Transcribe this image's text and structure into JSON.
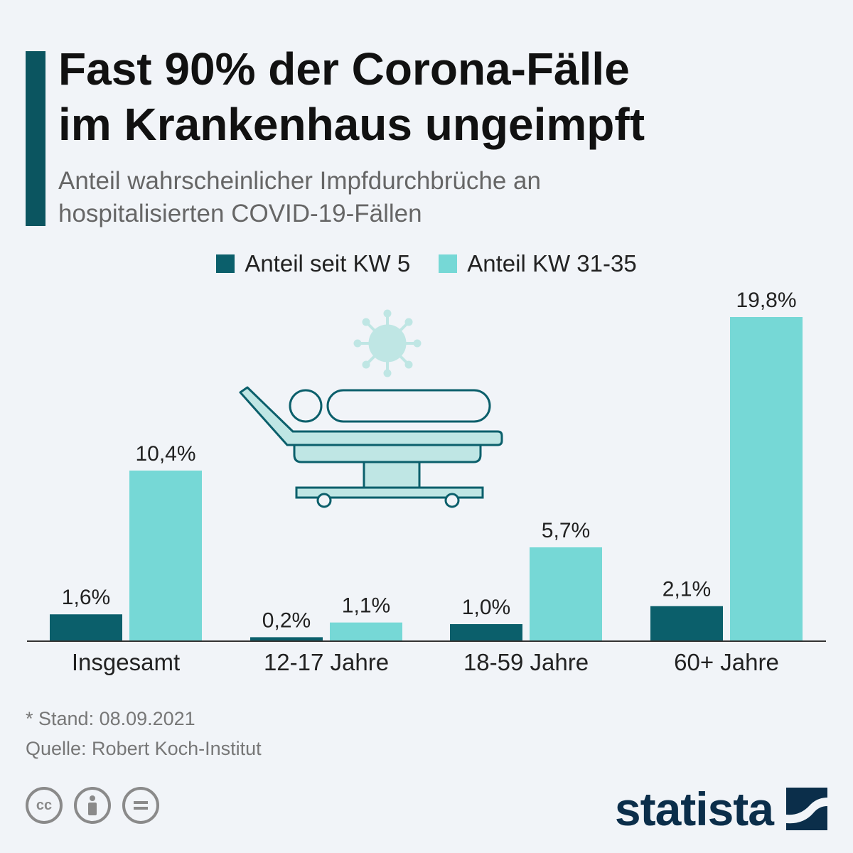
{
  "header": {
    "title_line1": "Fast 90% der Corona-Fälle",
    "title_line2": "im Krankenhaus ungeimpft",
    "subtitle_line1": "Anteil wahrscheinlicher Impfdurchbrüche an",
    "subtitle_line2": "hospitalisierten COVID-19-Fällen"
  },
  "colors": {
    "accent": "#0b5560",
    "series_dark": "#0b5f6b",
    "series_light": "#76d8d6",
    "brand": "#0b2e4a"
  },
  "chart_data": {
    "type": "bar",
    "categories": [
      "Insgesamt",
      "12-17 Jahre",
      "18-59 Jahre",
      "60+ Jahre"
    ],
    "series": [
      {
        "name": "Anteil seit KW 5",
        "values": [
          1.6,
          0.2,
          1.0,
          2.1
        ],
        "labels": [
          "1,6%",
          "0,2%",
          "1,0%",
          "2,1%"
        ],
        "color": "#0b5f6b"
      },
      {
        "name": "Anteil KW 31-35",
        "values": [
          10.4,
          1.1,
          5.7,
          19.8
        ],
        "labels": [
          "10,4%",
          "1,1%",
          "5,7%",
          "19,8%"
        ],
        "color": "#76d8d6"
      }
    ],
    "ylim": [
      0,
      19.8
    ],
    "grid": false,
    "legend_position": "top"
  },
  "footer": {
    "note": "* Stand: 08.09.2021",
    "source": "Quelle: Robert Koch-Institut",
    "cc_icons": [
      "cc-icon",
      "by-icon",
      "nd-icon"
    ],
    "brand": "statista"
  }
}
